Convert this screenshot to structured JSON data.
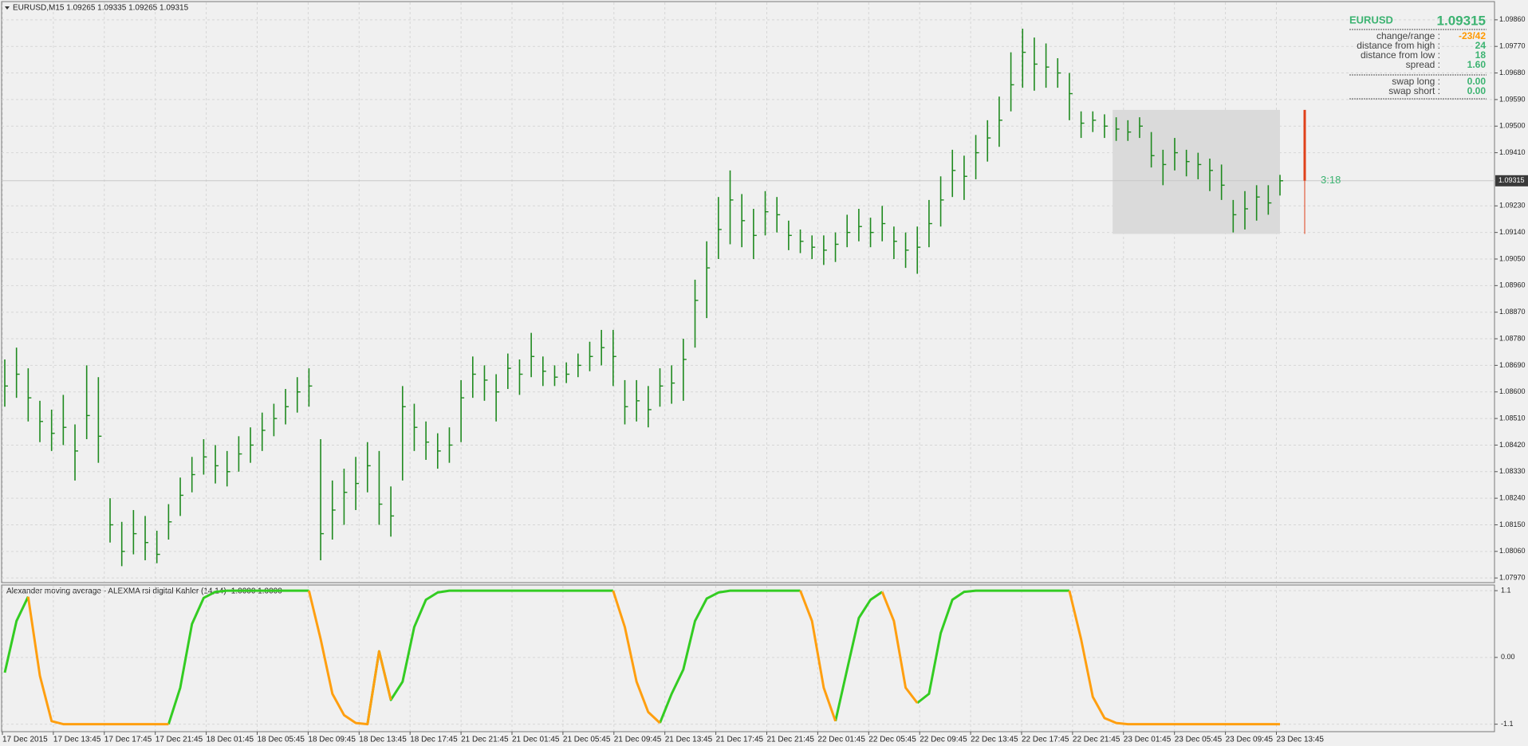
{
  "chart_data": [
    {
      "type": "ohlc",
      "title": "EURUSD,M15  1.09265 1.09335 1.09265 1.09315",
      "color": "#1f8a1f",
      "high": [
        1.0871,
        1.0875,
        1.0868,
        1.0857,
        1.0854,
        1.0859,
        1.0849,
        1.0869,
        1.0865,
        1.0824,
        1.0816,
        1.082,
        1.0818,
        1.0813,
        1.0822,
        1.0831,
        1.0838,
        1.0844,
        1.0842,
        1.084,
        1.0845,
        1.0848,
        1.0853,
        1.0856,
        1.0861,
        1.0865,
        1.0868,
        1.0844,
        1.083,
        1.0834,
        1.0838,
        1.0843,
        1.084,
        1.0828,
        1.0862,
        1.0856,
        1.085,
        1.0846,
        1.0848,
        1.0864,
        1.0872,
        1.0869,
        1.0866,
        1.0873,
        1.0871,
        1.088,
        1.0872,
        1.0869,
        1.087,
        1.0873,
        1.0877,
        1.0881,
        1.0881,
        1.0864,
        1.0864,
        1.0862,
        1.0868,
        1.0869,
        1.0878,
        1.0898,
        1.0911,
        1.0926,
        1.0935,
        1.0927,
        1.0922,
        1.0928,
        1.0926,
        1.0918,
        1.0915,
        1.0913,
        1.0913,
        1.0914,
        1.092,
        1.0922,
        1.0919,
        1.0923,
        1.0916,
        1.0914,
        1.0916,
        1.0925,
        1.0933,
        1.0942,
        1.094,
        1.0947,
        1.0952,
        1.096,
        1.0975,
        1.0983,
        1.098,
        1.0978,
        1.0973,
        1.0968,
        1.0955,
        1.0955,
        1.0954,
        1.0953,
        1.0952,
        1.0953,
        1.0948,
        1.0942,
        1.0946,
        1.0942,
        1.0941,
        1.0939,
        1.0937,
        1.0925,
        1.0928,
        1.093,
        1.093,
        1.09335
      ],
      "low": [
        1.0855,
        1.0858,
        1.085,
        1.0843,
        1.084,
        1.0842,
        1.083,
        1.0844,
        1.0836,
        1.0809,
        1.0801,
        1.0805,
        1.0803,
        1.0802,
        1.081,
        1.0818,
        1.0826,
        1.0832,
        1.0829,
        1.0828,
        1.0833,
        1.0836,
        1.084,
        1.0845,
        1.0849,
        1.0853,
        1.0855,
        1.0803,
        1.081,
        1.0815,
        1.082,
        1.0826,
        1.0815,
        1.0811,
        1.083,
        1.084,
        1.0837,
        1.0834,
        1.0836,
        1.0843,
        1.0858,
        1.0857,
        1.085,
        1.0861,
        1.0859,
        1.0865,
        1.0862,
        1.0862,
        1.0863,
        1.0865,
        1.0867,
        1.0869,
        1.0862,
        1.0849,
        1.085,
        1.0848,
        1.0855,
        1.0856,
        1.0857,
        1.0875,
        1.0885,
        1.0905,
        1.091,
        1.0909,
        1.0905,
        1.0913,
        1.0914,
        1.0908,
        1.0907,
        1.0905,
        1.0903,
        1.0904,
        1.0909,
        1.0911,
        1.0909,
        1.0911,
        1.0905,
        1.0902,
        1.09,
        1.0909,
        1.0916,
        1.0926,
        1.0925,
        1.0932,
        1.0938,
        1.0943,
        1.0955,
        1.0963,
        1.0962,
        1.0963,
        1.0963,
        1.0952,
        1.0946,
        1.0948,
        1.0946,
        1.0945,
        1.0945,
        1.0946,
        1.0936,
        1.093,
        1.0935,
        1.0933,
        1.0932,
        1.0928,
        1.0925,
        1.0914,
        1.0915,
        1.0918,
        1.092,
        1.09265
      ],
      "close": [
        1.0862,
        1.0866,
        1.0858,
        1.085,
        1.0846,
        1.0848,
        1.084,
        1.0852,
        1.0845,
        1.0815,
        1.0806,
        1.0812,
        1.0809,
        1.0805,
        1.0816,
        1.0825,
        1.0832,
        1.0838,
        1.0835,
        1.0833,
        1.0839,
        1.0842,
        1.0847,
        1.0851,
        1.0855,
        1.086,
        1.0862,
        1.0812,
        1.082,
        1.0826,
        1.0829,
        1.0835,
        1.0822,
        1.0818,
        1.0855,
        1.0848,
        1.0843,
        1.084,
        1.0842,
        1.0858,
        1.0866,
        1.0864,
        1.086,
        1.0868,
        1.0866,
        1.0872,
        1.0867,
        1.0865,
        1.0866,
        1.0869,
        1.0872,
        1.0875,
        1.0872,
        1.0855,
        1.0857,
        1.0854,
        1.0862,
        1.0863,
        1.0871,
        1.0891,
        1.0902,
        1.0915,
        1.0925,
        1.0918,
        1.0913,
        1.0921,
        1.092,
        1.0913,
        1.0911,
        1.0909,
        1.0908,
        1.091,
        1.0914,
        1.0916,
        1.0914,
        1.0917,
        1.0911,
        1.0908,
        1.0909,
        1.0917,
        1.0925,
        1.0935,
        1.0933,
        1.0941,
        1.0946,
        1.0952,
        1.0964,
        1.0975,
        1.0971,
        1.097,
        1.0968,
        1.0961,
        1.0951,
        1.0952,
        1.095,
        1.0949,
        1.0948,
        1.095,
        1.094,
        1.0937,
        1.0941,
        1.0938,
        1.0937,
        1.0935,
        1.093,
        1.092,
        1.0922,
        1.0926,
        1.0924,
        1.09315
      ],
      "ylim": [
        1.07957,
        1.09919
      ],
      "yticks": [
        {
          "value": 1.0986,
          "label": "1.09860"
        },
        {
          "value": 1.0977,
          "label": "1.09770"
        },
        {
          "value": 1.0968,
          "label": "1.09680"
        },
        {
          "value": 1.0959,
          "label": "1.09590"
        },
        {
          "value": 1.095,
          "label": "1.09500"
        },
        {
          "value": 1.0941,
          "label": "1.09410"
        },
        {
          "value": 1.0923,
          "label": "1.09230"
        },
        {
          "value": 1.0914,
          "label": "1.09140"
        },
        {
          "value": 1.0905,
          "label": "1.09050"
        },
        {
          "value": 1.0896,
          "label": "1.08960"
        },
        {
          "value": 1.0887,
          "label": "1.08870"
        },
        {
          "value": 1.0878,
          "label": "1.08780"
        },
        {
          "value": 1.0869,
          "label": "1.08690"
        },
        {
          "value": 1.086,
          "label": "1.08600"
        },
        {
          "value": 1.0851,
          "label": "1.08510"
        },
        {
          "value": 1.0842,
          "label": "1.08420"
        },
        {
          "value": 1.0833,
          "label": "1.08330"
        },
        {
          "value": 1.0824,
          "label": "1.08240"
        },
        {
          "value": 1.0815,
          "label": "1.08150"
        },
        {
          "value": 1.0806,
          "label": "1.08060"
        },
        {
          "value": 1.0797,
          "label": "1.07970"
        }
      ],
      "grid": true,
      "bid": {
        "value": 1.09315,
        "label": "1.09315"
      },
      "range_box": {
        "high": 1.09555,
        "low": 1.09135,
        "color": "#dadada",
        "bar_color": "#e0401a"
      },
      "timer": "3:18",
      "time_labels": [
        "17 Dec 2015",
        "17 Dec 13:45",
        "17 Dec 17:45",
        "17 Dec 21:45",
        "18 Dec 01:45",
        "18 Dec 05:45",
        "18 Dec 09:45",
        "18 Dec 13:45",
        "18 Dec 17:45",
        "21 Dec 21:45",
        "21 Dec 01:45",
        "21 Dec 05:45",
        "21 Dec 09:45",
        "21 Dec 13:45",
        "21 Dec 17:45",
        "21 Dec 21:45",
        "22 Dec 01:45",
        "22 Dec 05:45",
        "22 Dec 09:45",
        "22 Dec 13:45",
        "22 Dec 17:45",
        "22 Dec 21:45",
        "23 Dec 01:45",
        "23 Dec 05:45",
        "23 Dec 09:45",
        "23 Dec 13:45"
      ]
    },
    {
      "type": "line",
      "title": "Alexander moving average - ALEXMA rsi digital Kahler (14,14) -1.0000 1.0000",
      "series": [
        {
          "color": "#33cc22",
          "values": [
            -0.25,
            0.6,
            1.0,
            null,
            null,
            null,
            null,
            null,
            null,
            null,
            null,
            null,
            null,
            null,
            -1.1,
            -0.5,
            0.55,
            0.98,
            1.08,
            1.1,
            1.1,
            1.1,
            1.1,
            1.1,
            1.1,
            1.1,
            1.1,
            null,
            null,
            null,
            null,
            -1.1,
            0.1,
            -0.7,
            -0.4,
            0.5,
            0.95,
            1.07,
            1.1,
            1.1,
            1.1,
            1.1,
            1.1,
            1.1,
            1.1,
            1.1,
            1.1,
            1.1,
            1.1,
            1.1,
            1.1,
            1.1,
            1.1,
            null,
            null,
            null,
            -1.08,
            -0.6,
            -0.2,
            0.6,
            0.97,
            1.07,
            1.1,
            1.1,
            1.1,
            1.1,
            1.1,
            1.1,
            1.1,
            null,
            null,
            -1.05,
            -0.2,
            0.65,
            0.95,
            1.08,
            null,
            null,
            -0.75,
            -0.6,
            0.4,
            0.95,
            1.08,
            1.1,
            1.1,
            1.1,
            1.1,
            1.1,
            1.1,
            1.1,
            1.1,
            1.1,
            null,
            null,
            null,
            null,
            null,
            null,
            null,
            null,
            null,
            null,
            null,
            null,
            null,
            null,
            null,
            null,
            null,
            null
          ]
        },
        {
          "color": "#ff9f10",
          "values": [
            null,
            null,
            1.0,
            -0.3,
            -1.05,
            -1.1,
            -1.1,
            -1.1,
            -1.1,
            -1.1,
            -1.1,
            -1.1,
            -1.1,
            -1.1,
            -1.1,
            null,
            null,
            null,
            null,
            null,
            null,
            null,
            null,
            null,
            null,
            null,
            1.1,
            0.3,
            -0.6,
            -0.95,
            -1.08,
            -1.1,
            0.1,
            -0.7,
            null,
            null,
            null,
            null,
            null,
            null,
            null,
            null,
            null,
            null,
            null,
            null,
            null,
            null,
            null,
            null,
            null,
            null,
            1.1,
            0.5,
            -0.4,
            -0.9,
            -1.08,
            null,
            null,
            null,
            null,
            null,
            null,
            null,
            null,
            null,
            null,
            null,
            1.1,
            0.6,
            -0.5,
            -1.05,
            null,
            null,
            null,
            1.08,
            0.6,
            -0.5,
            -0.75,
            null,
            null,
            null,
            null,
            null,
            null,
            null,
            null,
            null,
            null,
            null,
            null,
            1.1,
            0.3,
            -0.65,
            -1.0,
            -1.08,
            -1.1,
            -1.1,
            -1.1,
            -1.1,
            -1.1,
            -1.1,
            -1.1,
            -1.1,
            -1.1,
            -1.1,
            -1.1,
            -1.1,
            -1.1,
            -1.1
          ]
        }
      ],
      "ylim": [
        -1.21,
        1.18
      ],
      "yticks": [
        1.1,
        {
          "value": 0,
          "label": "0.00"
        },
        -1.1
      ],
      "grid": true
    }
  ],
  "info_panel": {
    "symbol": "EURUSD",
    "price": "1.09315",
    "color": "#3cb371",
    "rows": [
      {
        "label": "change/range :",
        "value": "-23/42",
        "color": "#ff9900"
      },
      {
        "label": "distance from high :",
        "value": "24",
        "color": "#3cb371"
      },
      {
        "label": "distance from low :",
        "value": "18",
        "color": "#3cb371"
      },
      {
        "label": "spread :",
        "value": "1.60",
        "color": "#3cb371"
      },
      {
        "label": "swap long :",
        "value": "0.00",
        "color": "#3cb371"
      },
      {
        "label": "swap short :",
        "value": "0.00",
        "color": "#3cb371"
      }
    ]
  }
}
